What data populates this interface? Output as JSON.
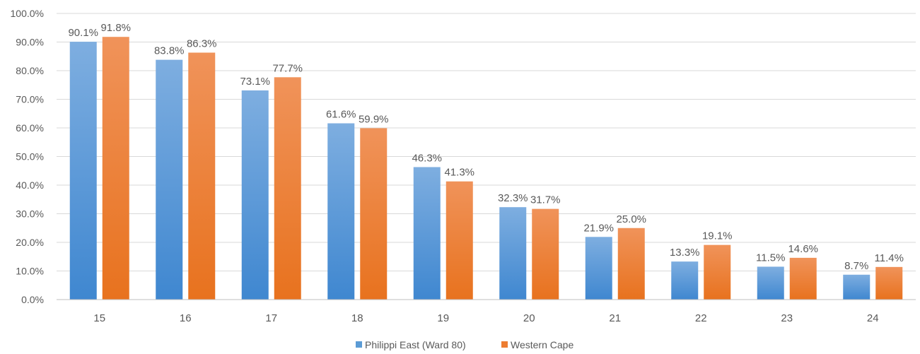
{
  "chart_data": {
    "type": "bar",
    "categories": [
      "15",
      "16",
      "17",
      "18",
      "19",
      "20",
      "21",
      "22",
      "23",
      "24"
    ],
    "series": [
      {
        "name": "Philippi East (Ward 80)",
        "color": "#5b9bd5",
        "values": [
          90.1,
          83.8,
          73.1,
          61.6,
          46.3,
          32.3,
          21.9,
          13.3,
          11.5,
          8.7
        ],
        "labels": [
          "90.1%",
          "83.8%",
          "73.1%",
          "61.6%",
          "46.3%",
          "32.3%",
          "21.9%",
          "13.3%",
          "11.5%",
          "8.7%"
        ]
      },
      {
        "name": "Western Cape",
        "color": "#ed7d31",
        "values": [
          91.8,
          86.3,
          77.7,
          59.9,
          41.3,
          31.7,
          25.0,
          19.1,
          14.6,
          11.4
        ],
        "labels": [
          "91.8%",
          "86.3%",
          "77.7%",
          "59.9%",
          "41.3%",
          "31.7%",
          "25.0%",
          "19.1%",
          "14.6%",
          "11.4%"
        ]
      }
    ],
    "ylim": [
      0,
      100
    ],
    "yticks": [
      0,
      10,
      20,
      30,
      40,
      50,
      60,
      70,
      80,
      90,
      100
    ],
    "ytick_labels": [
      "0.0%",
      "10.0%",
      "20.0%",
      "30.0%",
      "40.0%",
      "50.0%",
      "60.0%",
      "70.0%",
      "80.0%",
      "90.0%",
      "100.0%"
    ],
    "title": "",
    "xlabel": "",
    "ylabel": "",
    "grid": true,
    "legend_position": "bottom"
  }
}
